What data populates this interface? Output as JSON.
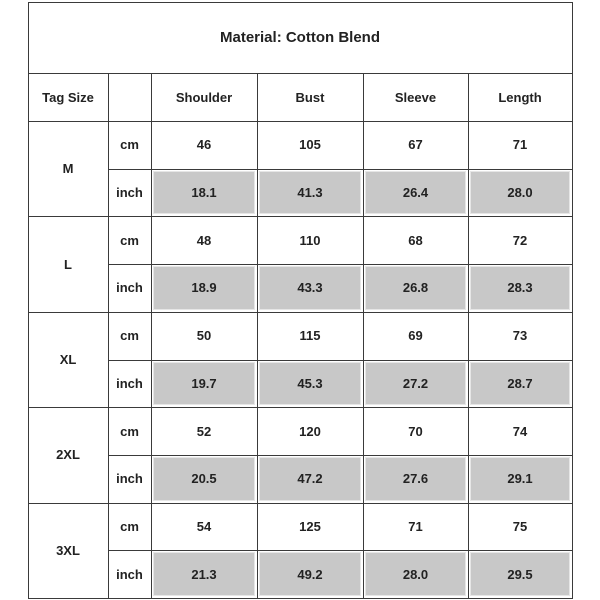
{
  "table": {
    "title": "Material: Cotton Blend",
    "tag_size": "Tag Size",
    "columns": [
      "Shoulder",
      "Bust",
      "Sleeve",
      "Length"
    ],
    "sizes": [
      {
        "size": "M",
        "rows": [
          {
            "unit": "cm",
            "values": [
              "46",
              "105",
              "67",
              "71"
            ]
          },
          {
            "unit": "inch",
            "values": [
              "18.1",
              "41.3",
              "26.4",
              "28.0"
            ]
          }
        ]
      },
      {
        "size": "L",
        "rows": [
          {
            "unit": "cm",
            "values": [
              "48",
              "110",
              "68",
              "72"
            ]
          },
          {
            "unit": "inch",
            "values": [
              "18.9",
              "43.3",
              "26.8",
              "28.3"
            ]
          }
        ]
      },
      {
        "size": "XL",
        "rows": [
          {
            "unit": "cm",
            "values": [
              "50",
              "115",
              "69",
              "73"
            ]
          },
          {
            "unit": "inch",
            "values": [
              "19.7",
              "45.3",
              "27.2",
              "28.7"
            ]
          }
        ]
      },
      {
        "size": "2XL",
        "rows": [
          {
            "unit": "cm",
            "values": [
              "52",
              "120",
              "70",
              "74"
            ]
          },
          {
            "unit": "inch",
            "values": [
              "20.5",
              "47.2",
              "27.6",
              "29.1"
            ]
          }
        ]
      },
      {
        "size": "3XL",
        "rows": [
          {
            "unit": "cm",
            "values": [
              "54",
              "125",
              "71",
              "75"
            ]
          },
          {
            "unit": "inch",
            "values": [
              "21.3",
              "49.2",
              "28.0",
              "29.5"
            ]
          }
        ]
      }
    ]
  }
}
